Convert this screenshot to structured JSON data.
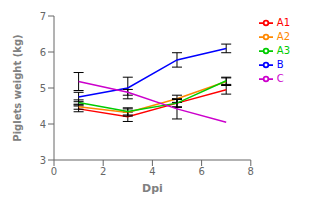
{
  "chart_data": {
    "type": "line",
    "xlabel": "Dpi",
    "ylabel": "Piglets weight (kg)",
    "x": [
      1,
      3,
      5,
      7
    ],
    "series": [
      {
        "name": "A1",
        "color": "#FF0000",
        "values": [
          4.42,
          4.2,
          4.58,
          4.95
        ],
        "yerr": [
          0.08,
          0.13,
          0.12,
          0.12
        ]
      },
      {
        "name": "A2",
        "color": "#FF8800",
        "values": [
          4.48,
          4.32,
          4.7,
          5.18
        ],
        "yerr": [
          0.07,
          0.1,
          0.1,
          0.1
        ]
      },
      {
        "name": "A3",
        "color": "#00CC00",
        "values": [
          4.6,
          4.35,
          4.58,
          5.2
        ],
        "yerr": [
          0.07,
          0.1,
          0.1,
          0.1
        ]
      },
      {
        "name": "B",
        "color": "#0000FF",
        "values": [
          4.75,
          5.0,
          5.78,
          6.1
        ],
        "yerr": [
          0.13,
          0.3,
          0.2,
          0.12
        ]
      },
      {
        "name": "C",
        "color": "#CC00CC",
        "values": [
          5.18,
          4.88,
          4.42,
          4.05
        ],
        "yerr": [
          0.25,
          0.08,
          0.28,
          0.0
        ]
      }
    ],
    "xlim": [
      0,
      8
    ],
    "ylim": [
      3,
      7
    ],
    "xticks": [
      0,
      2,
      4,
      6,
      8
    ],
    "yticks": [
      3,
      4,
      5,
      6,
      7
    ],
    "grid": false,
    "legend": "right"
  }
}
